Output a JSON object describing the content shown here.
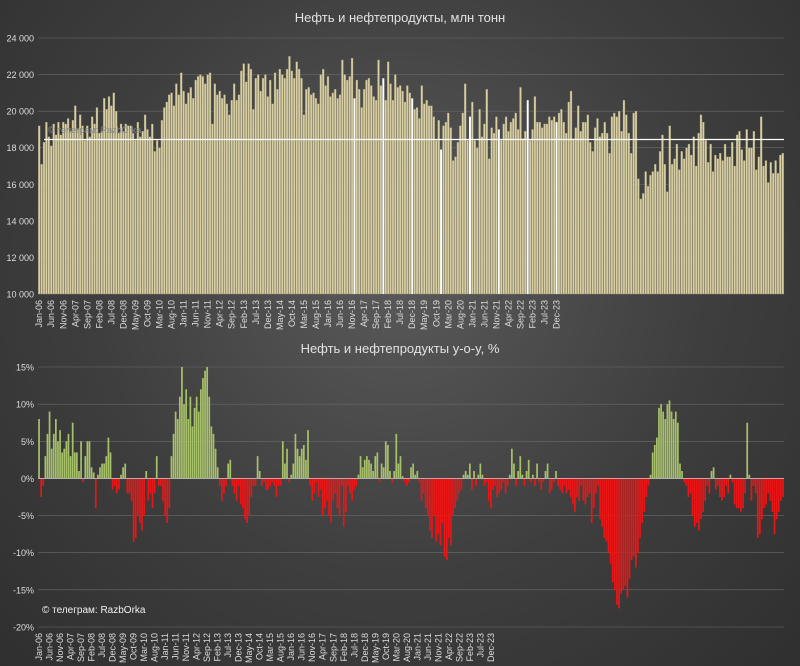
{
  "colors": {
    "background": "#454545",
    "bar_top": "#d8cfa4",
    "bar_top_stroke": "#8c8466",
    "avg_line": "#ffffff",
    "bar_positive": "#a7c06a",
    "bar_negative": "#e81616",
    "axis_text": "#dcdcdc",
    "grid": "#6a6a6a"
  },
  "watermark": "© телеграм: RazbOrka",
  "top_watermark": "© телеграм: RazbOrka",
  "chart_data": [
    {
      "type": "bar",
      "title": "Нефть и нефтепродукты, млн тонн",
      "ylim": [
        10000,
        24000
      ],
      "yticks": [
        "10 000",
        "12 000",
        "14 000",
        "16 000",
        "18 000",
        "20 000",
        "22 000",
        "24 000"
      ],
      "ytick_values": [
        10000,
        12000,
        14000,
        16000,
        18000,
        20000,
        22000,
        24000
      ],
      "xtick_labels": [
        "Jan-06",
        "Jun-06",
        "Nov-06",
        "Apr-07",
        "Sep-07",
        "Feb-08",
        "Jul-08",
        "Dec-08",
        "May-09",
        "Oct-09",
        "Mar-10",
        "Aug-10",
        "Jan-11",
        "Jun-11",
        "Nov-11",
        "Apr-12",
        "Sep-12",
        "Feb-13",
        "Jul-13",
        "Dec-13",
        "May-14",
        "Oct-14",
        "Mar-15",
        "Aug-15",
        "Jan-16",
        "Jun-16",
        "Nov-16",
        "Apr-17",
        "Sep-17",
        "Feb-18",
        "Jul-18",
        "Dec-18",
        "May-19",
        "Oct-19",
        "Mar-20",
        "Aug-20",
        "Jan-21",
        "Jun-21",
        "Nov-21",
        "Apr-22",
        "Sep-22",
        "Feb-23",
        "Jul-23",
        "Dec-23"
      ],
      "start": "2006-01",
      "average_line_value": 18450,
      "highlighted_months": [
        "2016-12",
        "2017-12",
        "2018-12",
        "2019-12",
        "2020-12",
        "2021-12",
        "2022-12",
        "2023-12"
      ],
      "values": [
        19200,
        17100,
        18300,
        19400,
        18600,
        18100,
        19300,
        18700,
        19400,
        18700,
        19400,
        19300,
        19600,
        18900,
        19500,
        20300,
        19000,
        19800,
        19200,
        18400,
        19200,
        18600,
        19700,
        19300,
        20200,
        18800,
        18900,
        20700,
        20100,
        20800,
        20300,
        21000,
        20000,
        18800,
        19300,
        18900,
        19300,
        19200,
        19200,
        18800,
        18400,
        19400,
        18600,
        18900,
        19800,
        19000,
        18600,
        19300,
        17800,
        18400,
        18000,
        19500,
        20200,
        20500,
        20900,
        21000,
        20300,
        21500,
        20900,
        22100,
        21100,
        20400,
        21000,
        21300,
        20700,
        21700,
        21900,
        22000,
        21900,
        21500,
        22000,
        22100,
        19300,
        21500,
        20900,
        21100,
        20700,
        20900,
        20400,
        19800,
        20600,
        21500,
        20600,
        20900,
        22200,
        22600,
        21600,
        22600,
        22300,
        20100,
        21800,
        22000,
        21100,
        21800,
        22000,
        20800,
        21700,
        20400,
        22100,
        21200,
        22300,
        22000,
        21800,
        22300,
        23000,
        22200,
        21800,
        22700,
        22300,
        21800,
        19800,
        21200,
        21300,
        20900,
        21000,
        20700,
        20400,
        22000,
        22300,
        21400,
        21900,
        20800,
        21000,
        21200,
        20700,
        20900,
        22800,
        22000,
        21700,
        21900,
        22900,
        20700,
        21700,
        21200,
        20200,
        21200,
        21700,
        21800,
        21400,
        20800,
        20600,
        22800,
        21400,
        21800,
        20600,
        22700,
        21500,
        20600,
        22000,
        21300,
        21400,
        21100,
        20500,
        21400,
        21000,
        20700,
        20100,
        20200,
        19600,
        21400,
        20400,
        20600,
        20300,
        20300,
        19700,
        18400,
        19500,
        17900,
        19200,
        19400,
        19900,
        19100,
        17300,
        17500,
        18300,
        19200,
        19900,
        21500,
        18400,
        19700,
        20500,
        18400,
        18000,
        20100,
        18600,
        19300,
        21200,
        17400,
        19100,
        18800,
        19700,
        19000,
        18400,
        19300,
        19700,
        18900,
        19400,
        19600,
        19900,
        19000,
        21300,
        18500,
        18900,
        20600,
        18400,
        19000,
        20800,
        19400,
        19400,
        19100,
        19300,
        19300,
        19700,
        19500,
        19700,
        19400,
        19900,
        20100,
        19400,
        18800,
        20500,
        21100,
        18500,
        19100,
        20300,
        18900,
        19400,
        19400,
        19800,
        18300,
        17800,
        19100,
        19600,
        18600,
        18800,
        19400,
        18800,
        17700,
        19700,
        19900,
        19700,
        20000,
        18900,
        20600,
        19800,
        18800,
        17700,
        19900,
        20000,
        16300,
        15200,
        15500,
        16700,
        15900,
        16500,
        16700,
        17100,
        16700,
        17800,
        18700,
        17100,
        15600,
        19200,
        17100,
        17400,
        18200,
        16800,
        17800,
        17400,
        18000,
        18200,
        17600,
        18600,
        17000,
        18800,
        19800,
        19400,
        18400,
        17200,
        18200,
        16700,
        17600,
        17400,
        17700,
        17300,
        18200,
        17500,
        17500,
        18300,
        17000,
        18700,
        18900,
        17900,
        17300,
        19000,
        18000,
        18000,
        18900,
        16800,
        17500,
        19700,
        17000,
        17300,
        16100,
        17200,
        16600,
        17300,
        16600,
        17600,
        17700
      ]
    },
    {
      "type": "bar",
      "title": "Нефть и нефтепродукты y-o-y, %",
      "ylim": [
        -20,
        15
      ],
      "yticks": [
        "-20%",
        "-15%",
        "-10%",
        "-5%",
        "0%",
        "5%",
        "10%",
        "15%"
      ],
      "ytick_values": [
        -20,
        -15,
        -10,
        -5,
        0,
        5,
        10,
        15
      ],
      "xtick_labels": [
        "Jan-06",
        "Jun-06",
        "Nov-06",
        "Apr-07",
        "Sep-07",
        "Feb-08",
        "Jul-08",
        "Dec-08",
        "May-09",
        "Oct-09",
        "Mar-10",
        "Aug-10",
        "Jan-11",
        "Jun-11",
        "Nov-11",
        "Apr-12",
        "Sep-12",
        "Feb-13",
        "Jul-13",
        "Dec-13",
        "May-14",
        "Oct-14",
        "Mar-15",
        "Aug-15",
        "Jan-16",
        "Jun-16",
        "Nov-16",
        "Apr-17",
        "Sep-17",
        "Feb-18",
        "Jul-18",
        "Dec-18",
        "May-19",
        "Oct-19",
        "Mar-20",
        "Aug-20",
        "Jan-21",
        "Jun-21",
        "Nov-21",
        "Apr-22",
        "Sep-22",
        "Feb-23",
        "Jul-23",
        "Dec-23"
      ],
      "start": "2006-01",
      "values": [
        8.0,
        -2.5,
        -1.0,
        3.0,
        6.0,
        9.0,
        4.0,
        6.0,
        8.0,
        5.0,
        6.5,
        3.5,
        4.0,
        5.0,
        6.0,
        3.0,
        7.5,
        3.5,
        3.5,
        1.0,
        5.0,
        -0.5,
        3.0,
        5.0,
        5.0,
        1.5,
        0.8,
        -4.0,
        0.5,
        1.5,
        2.0,
        2.0,
        3.0,
        5.5,
        3.5,
        -1.5,
        -1.0,
        -2.0,
        -1.5,
        0.5,
        1.5,
        2.0,
        -2.0,
        -2.0,
        -3.0,
        -8.5,
        -8.0,
        -5.0,
        -6.0,
        -7.0,
        -5.0,
        1.0,
        -3.0,
        -2.0,
        -4.0,
        -2.0,
        3.0,
        -1.0,
        -1.0,
        -3.0,
        -5.0,
        -6.0,
        -4.0,
        3.0,
        6.0,
        9.0,
        8.0,
        11.0,
        15.0,
        10.0,
        12.0,
        8.0,
        11.0,
        7.0,
        9.5,
        11.0,
        9.0,
        12.0,
        13.5,
        14.5,
        15.0,
        11.0,
        7.0,
        6.0,
        4.0,
        1.5,
        -1.0,
        -3.0,
        -2.0,
        -1.0,
        2.0,
        2.5,
        -1.0,
        -2.0,
        -3.0,
        -1.0,
        -3.5,
        -4.0,
        -5.5,
        -6.0,
        -5.0,
        -2.5,
        -1.0,
        -1.0,
        3.0,
        1.0,
        -1.0,
        -0.5,
        -1.5,
        -1.5,
        -1.0,
        -0.5,
        -1.0,
        -2.5,
        -1.0,
        -1.0,
        5.0,
        2.0,
        4.0,
        -0.5,
        0.5,
        2.0,
        6.0,
        4.0,
        3.0,
        4.0,
        4.5,
        2.5,
        6.5,
        -1.0,
        -3.0,
        -2.0,
        -0.5,
        -2.5,
        -1.5,
        -5.0,
        -4.0,
        -3.0,
        -5.0,
        -6.0,
        -3.0,
        -2.0,
        -4.0,
        -5.0,
        -1.0,
        -6.5,
        -4.5,
        -1.0,
        -2.0,
        -3.0,
        -1.5,
        -1.0,
        0.5,
        3.0,
        1.5,
        2.5,
        3.0,
        2.5,
        2.0,
        1.0,
        3.0,
        3.5,
        -0.5,
        2.0,
        1.5,
        5.0,
        4.5,
        1.0,
        -0.5,
        1.0,
        6.0,
        2.0,
        3.0,
        0.3,
        -0.5,
        -1.0,
        -0.5,
        1.5,
        2.0,
        0.5,
        1.0,
        -0.5,
        -3.0,
        -2.0,
        -4.0,
        -5.0,
        -7.0,
        -8.0,
        -5.0,
        -8.5,
        -7.5,
        -9.0,
        -6.0,
        -10.5,
        -11.0,
        -8.0,
        -9.0,
        -5.0,
        -4.0,
        -3.0,
        -2.0,
        -1.5,
        0.5,
        1.0,
        0.5,
        2.0,
        -1.5,
        1.0,
        -1.0,
        0.5,
        2.0,
        0.5,
        -1.0,
        -0.5,
        -3.0,
        -4.0,
        -1.5,
        -1.0,
        -2.5,
        -2.0,
        -1.5,
        -0.5,
        -2.0,
        -1.0,
        0.5,
        4.0,
        2.0,
        -1.0,
        1.0,
        3.0,
        0.5,
        -1.0,
        1.0,
        2.5,
        -0.5,
        0.5,
        -1.0,
        2.0,
        -0.5,
        -1.5,
        -0.5,
        1.0,
        2.0,
        -2.0,
        -1.5,
        -0.5,
        1.0,
        -1.0,
        -1.5,
        -2.0,
        -1.0,
        -2.0,
        -1.5,
        -2.5,
        -3.5,
        -4.5,
        -2.5,
        -3.0,
        -1.0,
        -3.0,
        -3.5,
        -2.5,
        -2.0,
        -6.0,
        -4.0,
        -2.0,
        -1.0,
        -5.5,
        -6.5,
        -8.0,
        -8.5,
        -10.0,
        -11.5,
        -14.0,
        -15.0,
        -17.0,
        -17.5,
        -15.5,
        -15.0,
        -14.5,
        -16.0,
        -13.5,
        -11.0,
        -10.5,
        -12.0,
        -10.0,
        -8.0,
        -6.0,
        -4.5,
        -2.5,
        -1.0,
        0.5,
        3.5,
        4.5,
        5.5,
        9.5,
        10.0,
        9.0,
        8.0,
        10.0,
        10.5,
        9.0,
        8.0,
        9.0,
        7.5,
        2.0,
        1.0,
        -0.5,
        -1.0,
        -2.5,
        -2.0,
        -5.0,
        -6.5,
        -6.0,
        -7.0,
        -5.5,
        -4.5,
        -3.0,
        -1.0,
        -2.0,
        1.0,
        1.5,
        -1.5,
        -1.0,
        -2.5,
        -3.0,
        -2.5,
        -1.0,
        -2.0,
        0.5,
        -0.5,
        -3.5,
        -4.0,
        -4.0,
        -4.5,
        -4.0,
        -2.0,
        7.5,
        0.5,
        -3.0,
        -1.0,
        -2.0,
        -8.0,
        -7.5,
        -5.5,
        -4.0,
        -3.5,
        -2.0,
        -3.0,
        -4.5,
        -7.5,
        -5.5,
        -4.5,
        -3.0,
        -2.5
      ]
    }
  ]
}
